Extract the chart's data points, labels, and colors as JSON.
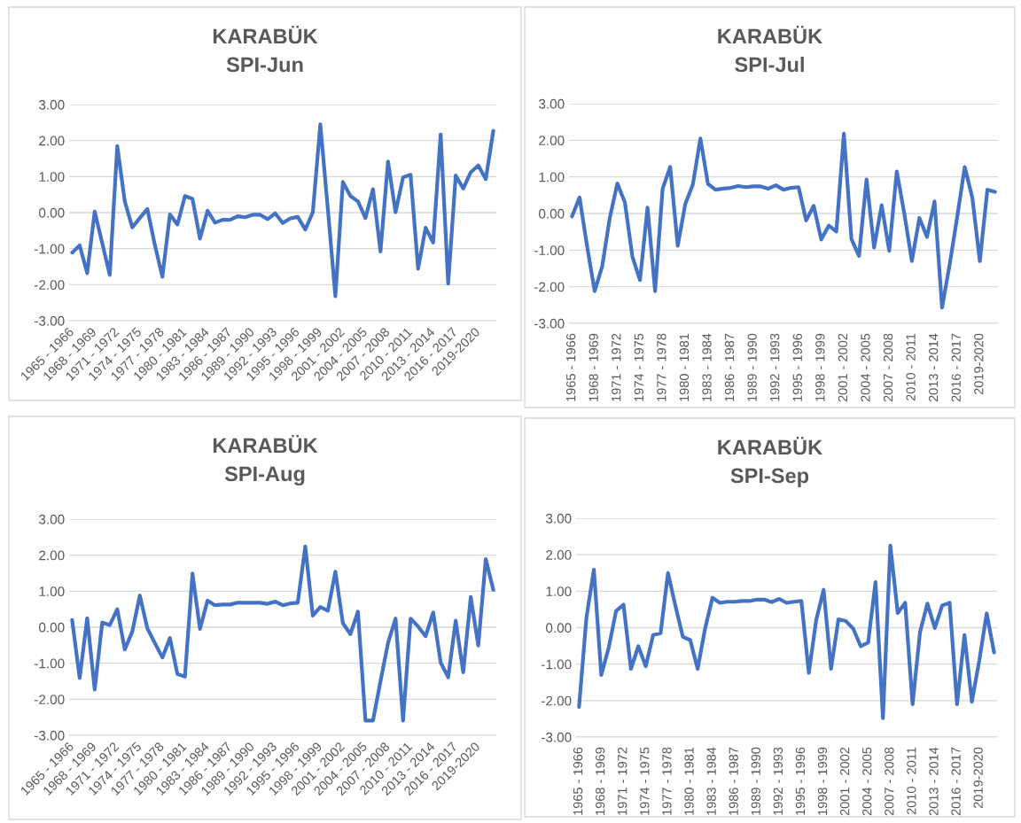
{
  "chart_data": [
    {
      "type": "line",
      "title": "KARABÜK",
      "subtitle": "SPI-Jun",
      "categories": [
        "1965 - 1966",
        null,
        null,
        "1968 - 1969",
        null,
        null,
        "1971 - 1972",
        null,
        null,
        "1974 - 1975",
        null,
        null,
        "1977 - 1978",
        null,
        null,
        "1980 - 1981",
        null,
        null,
        "1983 - 1984",
        null,
        null,
        "1986 - 1987",
        null,
        null,
        "1989 - 1990",
        null,
        null,
        "1992 - 1993",
        null,
        null,
        "1995 - 1996",
        null,
        null,
        "1998 - 1999",
        null,
        null,
        "2001 - 2002",
        null,
        null,
        "2004 - 2005",
        null,
        null,
        "2007 - 2008",
        null,
        null,
        "2010 - 2011",
        null,
        null,
        "2013 - 2014",
        null,
        null,
        "2016 - 2017",
        null,
        null,
        "2019-2020",
        null,
        null
      ],
      "series": [
        {
          "color": "#4472c4",
          "values": [
            -1.11,
            -0.91,
            -1.68,
            0.03,
            -0.85,
            -1.73,
            1.85,
            0.31,
            -0.41,
            -0.15,
            0.1,
            -0.9,
            -1.78,
            -0.05,
            -0.33,
            0.46,
            0.38,
            -0.72,
            0.05,
            -0.28,
            -0.2,
            -0.2,
            -0.1,
            -0.13,
            -0.06,
            -0.06,
            -0.18,
            -0.02,
            -0.29,
            -0.16,
            -0.12,
            -0.47,
            0.01,
            2.45,
            0.1,
            -2.32,
            0.85,
            0.46,
            0.31,
            -0.15,
            0.65,
            -1.08,
            1.42,
            0.01,
            0.98,
            1.05,
            -1.56,
            -0.42,
            -0.83,
            2.17,
            -1.97,
            1.03,
            0.67,
            1.12,
            1.31,
            0.93,
            2.27
          ]
        }
      ],
      "ylim": [
        -3,
        3
      ],
      "yticks": [
        {
          "value": -3,
          "label": "-3.00"
        },
        {
          "value": -2,
          "label": "-2.00"
        },
        {
          "value": -1,
          "label": "-1.00"
        },
        {
          "value": 0,
          "label": "0.00"
        },
        {
          "value": 1,
          "label": "1.00"
        },
        {
          "value": 2,
          "label": "2.00"
        },
        {
          "value": 3,
          "label": "3.00"
        }
      ],
      "grid": "y"
    },
    {
      "type": "line",
      "title": "KARABÜK",
      "subtitle": "SPI-Jul",
      "categories": [
        "1965 - 1966",
        null,
        null,
        "1968 - 1969",
        null,
        null,
        "1971 - 1972",
        null,
        null,
        "1974 - 1975",
        null,
        null,
        "1977 - 1978",
        null,
        null,
        "1980 - 1981",
        null,
        null,
        "1983 - 1984",
        null,
        null,
        "1986 - 1987",
        null,
        null,
        "1989 - 1990",
        null,
        null,
        "1992 - 1993",
        null,
        null,
        "1995 - 1996",
        null,
        null,
        "1998 - 1999",
        null,
        null,
        "2001 - 2002",
        null,
        null,
        "2004 - 2005",
        null,
        null,
        "2007 - 2008",
        null,
        null,
        "2010 - 2011",
        null,
        null,
        "2013 - 2014",
        null,
        null,
        "2016 - 2017",
        null,
        null,
        "2019-2020",
        null,
        null
      ],
      "series": [
        {
          "color": "#4472c4",
          "values": [
            -0.08,
            0.44,
            -0.9,
            -2.12,
            -1.44,
            -0.12,
            0.82,
            0.3,
            -1.18,
            -1.82,
            0.16,
            -2.12,
            0.68,
            1.27,
            -0.88,
            0.26,
            0.79,
            2.05,
            0.81,
            0.65,
            0.68,
            0.7,
            0.75,
            0.72,
            0.74,
            0.74,
            0.68,
            0.77,
            0.65,
            0.7,
            0.72,
            -0.19,
            0.21,
            -0.71,
            -0.33,
            -0.49,
            2.18,
            -0.7,
            -1.16,
            0.93,
            -0.93,
            0.23,
            -1.02,
            1.15,
            0.0,
            -1.3,
            -0.12,
            -0.64,
            0.33,
            -2.57,
            -1.4,
            -0.1,
            1.27,
            0.44,
            -1.3,
            0.65,
            0.59
          ]
        }
      ],
      "ylim": [
        -3,
        3
      ],
      "yticks": [
        {
          "value": -3,
          "label": "-3.00"
        },
        {
          "value": -2,
          "label": "-2.00"
        },
        {
          "value": -1,
          "label": "-1.00"
        },
        {
          "value": 0,
          "label": "0.00"
        },
        {
          "value": 1,
          "label": "1.00"
        },
        {
          "value": 2,
          "label": "2.00"
        },
        {
          "value": 3,
          "label": "3.00"
        }
      ],
      "grid": "y"
    },
    {
      "type": "line",
      "title": "KARABÜK",
      "subtitle": "SPI-Aug",
      "categories": [
        "1965 - 1966",
        null,
        null,
        "1968 - 1969",
        null,
        null,
        "1971 - 1972",
        null,
        null,
        "1974 - 1975",
        null,
        null,
        "1977 - 1978",
        null,
        null,
        "1980 - 1981",
        null,
        null,
        "1983 - 1984",
        null,
        null,
        "1986 - 1987",
        null,
        null,
        "1989 - 1990",
        null,
        null,
        "1992 - 1993",
        null,
        null,
        "1995 - 1996",
        null,
        null,
        "1998 - 1999",
        null,
        null,
        "2001 - 2002",
        null,
        null,
        "2004 - 2005",
        null,
        null,
        "2007 - 2008",
        null,
        null,
        "2010 - 2011",
        null,
        null,
        "2013 - 2014",
        null,
        null,
        "2016 - 2017",
        null,
        null,
        "2019-2020",
        null,
        null
      ],
      "series": [
        {
          "color": "#4472c4",
          "values": [
            0.2,
            -1.41,
            0.25,
            -1.73,
            0.13,
            0.06,
            0.5,
            -0.62,
            -0.12,
            0.88,
            -0.03,
            -0.44,
            -0.84,
            -0.3,
            -1.3,
            -1.37,
            1.49,
            -0.05,
            0.74,
            0.61,
            0.63,
            0.63,
            0.68,
            0.68,
            0.68,
            0.68,
            0.65,
            0.71,
            0.61,
            0.66,
            0.68,
            2.24,
            0.32,
            0.56,
            0.46,
            1.54,
            0.11,
            -0.19,
            0.43,
            -2.59,
            -2.59,
            -1.5,
            -0.44,
            0.24,
            -2.59,
            0.24,
            0.02,
            -0.25,
            0.41,
            -0.98,
            -1.39,
            0.18,
            -1.25,
            0.84,
            -0.51,
            1.89,
            1.04
          ]
        }
      ],
      "ylim": [
        -3,
        3
      ],
      "yticks": [
        {
          "value": -3,
          "label": "-3.00"
        },
        {
          "value": -2,
          "label": "-2.00"
        },
        {
          "value": -1,
          "label": "-1.00"
        },
        {
          "value": 0,
          "label": "0.00"
        },
        {
          "value": 1,
          "label": "1.00"
        },
        {
          "value": 2,
          "label": "2.00"
        },
        {
          "value": 3,
          "label": "3.00"
        }
      ],
      "grid": "y"
    },
    {
      "type": "line",
      "title": "KARABÜK",
      "subtitle": "SPI-Sep",
      "categories": [
        "1965 - 1966",
        null,
        null,
        "1968 - 1969",
        null,
        null,
        "1971 - 1972",
        null,
        null,
        "1974 - 1975",
        null,
        null,
        "1977 - 1978",
        null,
        null,
        "1980 - 1981",
        null,
        null,
        "1983 - 1984",
        null,
        null,
        "1986 - 1987",
        null,
        null,
        "1989 - 1990",
        null,
        null,
        "1992 - 1993",
        null,
        null,
        "1995 - 1996",
        null,
        null,
        "1998 - 1999",
        null,
        null,
        "2001 - 2002",
        null,
        null,
        "2004 - 2005",
        null,
        null,
        "2007 - 2008",
        null,
        null,
        "2010 - 2011",
        null,
        null,
        "2013 - 2014",
        null,
        null,
        "2016 - 2017",
        null,
        null,
        "2019-2020",
        null,
        null
      ],
      "series": [
        {
          "color": "#4472c4",
          "values": [
            -2.17,
            0.28,
            1.59,
            -1.3,
            -0.55,
            0.46,
            0.63,
            -1.13,
            -0.51,
            -1.06,
            -0.2,
            -0.15,
            1.5,
            0.6,
            -0.25,
            -0.34,
            -1.13,
            -0.03,
            0.82,
            0.68,
            0.71,
            0.71,
            0.73,
            0.73,
            0.77,
            0.77,
            0.7,
            0.79,
            0.68,
            0.71,
            0.73,
            -1.24,
            0.21,
            1.04,
            -1.13,
            0.23,
            0.18,
            -0.03,
            -0.51,
            -0.41,
            1.25,
            -2.48,
            2.25,
            0.4,
            0.68,
            -2.1,
            -0.13,
            0.66,
            -0.01,
            0.61,
            0.68,
            -2.1,
            -0.2,
            -2.03,
            -0.9,
            0.39,
            -0.68
          ]
        }
      ],
      "ylim": [
        -3,
        3
      ],
      "yticks": [
        {
          "value": -3,
          "label": "-3.00"
        },
        {
          "value": -2,
          "label": "-2.00"
        },
        {
          "value": -1,
          "label": "-1.00"
        },
        {
          "value": 0,
          "label": "0.00"
        },
        {
          "value": 1,
          "label": "1.00"
        },
        {
          "value": 2,
          "label": "2.00"
        },
        {
          "value": 3,
          "label": "3.00"
        }
      ],
      "grid": "y"
    }
  ]
}
